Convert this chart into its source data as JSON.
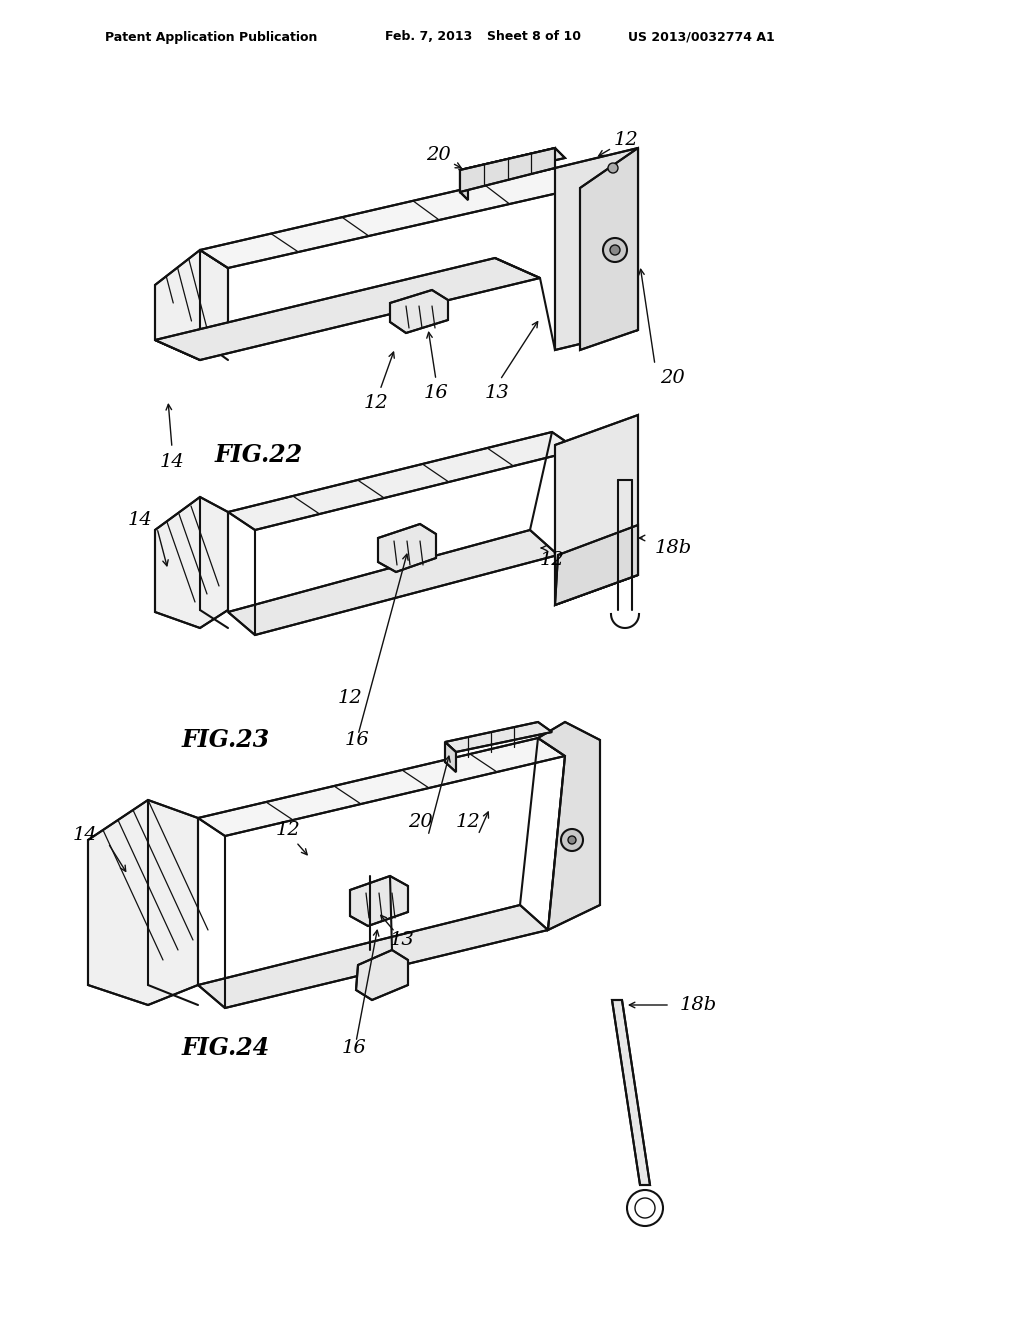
{
  "bg_color": "#ffffff",
  "line_color": "#111111",
  "text_color": "#000000",
  "header_left": "Patent Application Publication",
  "header_date": "Feb. 7, 2013",
  "header_sheet": "Sheet 8 of 10",
  "header_patent": "US 2013/0032774 A1",
  "fig22_label": "FIG.22",
  "fig23_label": "FIG.23",
  "fig24_label": "FIG.24"
}
